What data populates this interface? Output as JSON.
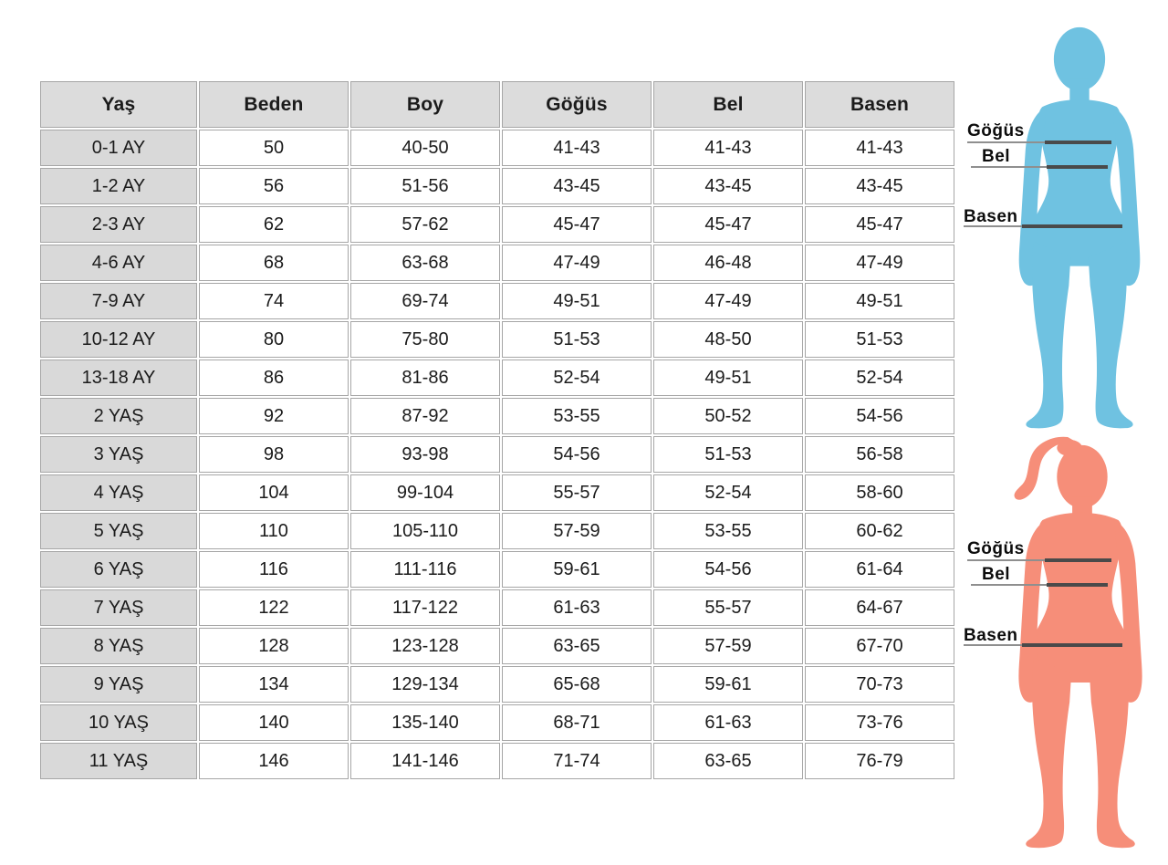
{
  "chart_data": {
    "type": "table",
    "title": "",
    "columns": [
      "Yaş",
      "Beden",
      "Boy",
      "Göğüs",
      "Bel",
      "Basen"
    ],
    "rows": [
      [
        "0-1 AY",
        "50",
        "40-50",
        "41-43",
        "41-43",
        "41-43"
      ],
      [
        "1-2 AY",
        "56",
        "51-56",
        "43-45",
        "43-45",
        "43-45"
      ],
      [
        "2-3 AY",
        "62",
        "57-62",
        "45-47",
        "45-47",
        "45-47"
      ],
      [
        "4-6 AY",
        "68",
        "63-68",
        "47-49",
        "46-48",
        "47-49"
      ],
      [
        "7-9 AY",
        "74",
        "69-74",
        "49-51",
        "47-49",
        "49-51"
      ],
      [
        "10-12 AY",
        "80",
        "75-80",
        "51-53",
        "48-50",
        "51-53"
      ],
      [
        "13-18 AY",
        "86",
        "81-86",
        "52-54",
        "49-51",
        "52-54"
      ],
      [
        "2 YAŞ",
        "92",
        "87-92",
        "53-55",
        "50-52",
        "54-56"
      ],
      [
        "3 YAŞ",
        "98",
        "93-98",
        "54-56",
        "51-53",
        "56-58"
      ],
      [
        "4 YAŞ",
        "104",
        "99-104",
        "55-57",
        "52-54",
        "58-60"
      ],
      [
        "5 YAŞ",
        "110",
        "105-110",
        "57-59",
        "53-55",
        "60-62"
      ],
      [
        "6 YAŞ",
        "116",
        "111-116",
        "59-61",
        "54-56",
        "61-64"
      ],
      [
        "7 YAŞ",
        "122",
        "117-122",
        "61-63",
        "55-57",
        "64-67"
      ],
      [
        "8 YAŞ",
        "128",
        "123-128",
        "63-65",
        "57-59",
        "67-70"
      ],
      [
        "9 YAŞ",
        "134",
        "129-134",
        "65-68",
        "59-61",
        "70-73"
      ],
      [
        "10 YAŞ",
        "140",
        "135-140",
        "68-71",
        "61-63",
        "73-76"
      ],
      [
        "11 YAŞ",
        "146",
        "141-146",
        "71-74",
        "63-65",
        "76-79"
      ]
    ]
  },
  "figures": {
    "boy": {
      "color": "#6fc2e1"
    },
    "girl": {
      "color": "#f68e79"
    },
    "measure_labels": {
      "chest": "Göğüs",
      "waist": "Bel",
      "hip": "Basen"
    }
  },
  "colors": {
    "header_bg": "#dcdcdc",
    "row_label_bg": "#d9d9d9",
    "cell_border": "#a6a6a6",
    "measure_line_thick": "#4a4a4a",
    "measure_line_thin": "#8f8f8f"
  }
}
